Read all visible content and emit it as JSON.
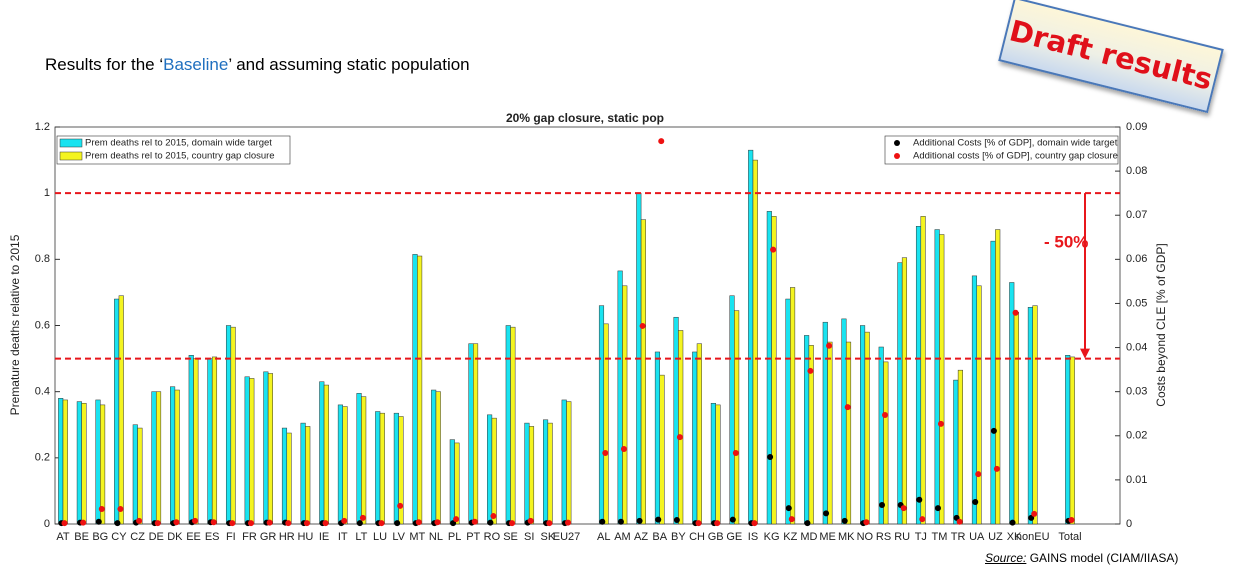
{
  "header": {
    "title_before": "Results for the ‘",
    "title_highlight": "Baseline",
    "title_after": "’ and assuming static population"
  },
  "stamp": "Draft results",
  "source": {
    "label": "Source:",
    "text": " GAINS model (CIAM/IIASA)"
  },
  "chart_data": {
    "type": "bar",
    "title": "20% gap closure, static pop",
    "y_label": "Premature deaths relative to 2015",
    "y2_label": "Costs beyond CLE [% of GDP]",
    "annotation": "- 50%",
    "reference_lines": [
      1,
      0.5
    ],
    "reference_color": "#e8161b",
    "categories": [
      "AT",
      "BE",
      "BG",
      "CY",
      "CZ",
      "DE",
      "DK",
      "EE",
      "ES",
      "FI",
      "FR",
      "GR",
      "HR",
      "HU",
      "IE",
      "IT",
      "LT",
      "LU",
      "LV",
      "MT",
      "NL",
      "PL",
      "PT",
      "RO",
      "SE",
      "SI",
      "SK",
      "EU27",
      null,
      "AL",
      "AM",
      "AZ",
      "BA",
      "BY",
      "CH",
      "GB",
      "GE",
      "IS",
      "KG",
      "KZ",
      "MD",
      "ME",
      "MK",
      "NO",
      "RS",
      "RU",
      "TJ",
      "TM",
      "TR",
      "UA",
      "UZ",
      "XK",
      "nonEU",
      null,
      "Total"
    ],
    "ylim": [
      0,
      1.2
    ],
    "yticks": [
      0,
      0.2,
      0.4,
      0.6,
      0.8,
      1,
      1.2
    ],
    "y2lim": [
      0,
      0.09
    ],
    "y2ticks": [
      0,
      0.01,
      0.02,
      0.03,
      0.04,
      0.05,
      0.06,
      0.07,
      0.08,
      0.09
    ],
    "legend": "upper left",
    "legend2": "upper right",
    "series": [
      {
        "name": "Prem deaths rel to 2015, domain wide target",
        "color": "#19e3f0",
        "values": [
          0.38,
          0.37,
          0.375,
          0.68,
          0.3,
          0.4,
          0.415,
          0.51,
          0.5,
          0.6,
          0.445,
          0.46,
          0.29,
          0.305,
          0.43,
          0.36,
          0.395,
          0.34,
          0.335,
          0.815,
          0.405,
          0.255,
          0.545,
          0.33,
          0.6,
          0.305,
          0.315,
          0.375,
          null,
          0.66,
          0.765,
          1.0,
          0.52,
          0.625,
          0.52,
          0.365,
          0.69,
          1.13,
          0.945,
          0.68,
          0.57,
          0.61,
          0.62,
          0.6,
          0.535,
          0.79,
          0.9,
          0.89,
          0.435,
          0.75,
          0.855,
          0.73,
          0.655,
          null,
          0.51
        ]
      },
      {
        "name": "Prem deaths rel to 2015, country gap closure",
        "color": "#f4f420",
        "values": [
          0.375,
          0.365,
          0.36,
          0.69,
          0.29,
          0.4,
          0.405,
          0.5,
          0.505,
          0.595,
          0.44,
          0.455,
          0.275,
          0.295,
          0.42,
          0.355,
          0.385,
          0.335,
          0.325,
          0.81,
          0.4,
          0.245,
          0.545,
          0.32,
          0.595,
          0.295,
          0.305,
          0.37,
          null,
          0.605,
          0.72,
          0.92,
          0.45,
          0.585,
          0.545,
          0.36,
          0.645,
          1.1,
          0.93,
          0.715,
          0.54,
          0.55,
          0.55,
          0.58,
          0.49,
          0.805,
          0.93,
          0.875,
          0.465,
          0.72,
          0.89,
          0.64,
          0.66,
          null,
          0.505
        ]
      },
      {
        "name": "Additional Costs [% of GDP], domain wide target",
        "color": "#000000",
        "type": "scatter",
        "axis": "y2",
        "values": [
          0.0002,
          0.0003,
          0.0005,
          0.0002,
          0.0003,
          0.0002,
          0.0002,
          0.0004,
          0.0004,
          0.0002,
          0.0002,
          0.0003,
          0.0003,
          0.0002,
          0.0002,
          0.0002,
          0.0002,
          0.0002,
          0.0002,
          0.0002,
          0.0002,
          0.0002,
          0.0003,
          0.0003,
          0.0002,
          0.0003,
          0.0002,
          0.0002,
          null,
          0.0005,
          0.0005,
          0.0007,
          0.001,
          0.0009,
          0.0002,
          0.0002,
          0.001,
          0.0002,
          0.0152,
          0.0036,
          0.0002,
          0.0024,
          0.0007,
          0.0002,
          0.0043,
          0.0043,
          0.0055,
          0.0036,
          0.0014,
          0.005,
          0.0211,
          0.0003,
          0.0014,
          null,
          0.0007
        ]
      },
      {
        "name": "Additional costs [% of GDP], country gap closure",
        "color": "#ee1111",
        "type": "scatter",
        "axis": "y2",
        "values": [
          0.0002,
          0.0003,
          0.0034,
          0.0034,
          0.0007,
          0.0002,
          0.0004,
          0.0007,
          0.0004,
          0.0002,
          0.0002,
          0.0003,
          0.0002,
          0.0002,
          0.0002,
          0.0007,
          0.0014,
          0.0002,
          0.0041,
          0.0004,
          0.0004,
          0.0011,
          0.0005,
          0.0018,
          0.0002,
          0.0007,
          0.0002,
          0.0003,
          null,
          0.0161,
          0.017,
          0.0449,
          0.0868,
          0.0197,
          0.0002,
          0.0002,
          0.0161,
          0.0002,
          0.0622,
          0.0011,
          0.0347,
          0.0404,
          0.0265,
          0.0004,
          0.0247,
          0.0036,
          0.0011,
          0.0227,
          0.0005,
          0.0113,
          0.0125,
          0.0479,
          0.0023,
          null,
          0.0009
        ]
      }
    ]
  }
}
